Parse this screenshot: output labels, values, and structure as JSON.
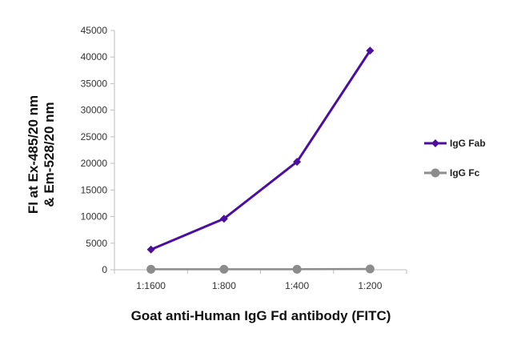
{
  "chart_data": {
    "type": "line",
    "categories": [
      "1:1600",
      "1:800",
      "1:400",
      "1:200"
    ],
    "series": [
      {
        "name": "IgG Fab",
        "values": [
          3800,
          9600,
          20300,
          41200
        ],
        "color": "#4b0fa0",
        "marker": "diamond"
      },
      {
        "name": "IgG Fc",
        "values": [
          100,
          100,
          100,
          150
        ],
        "color": "#8c8c8c",
        "marker": "circle"
      }
    ],
    "xlabel": "Goat anti-Human IgG Fd antibody (FITC)",
    "ylabel": [
      "FI at Ex-485/20 nm",
      "& Em-528/20 nm"
    ],
    "ylim": [
      0,
      45000
    ],
    "yticks": [
      0,
      5000,
      10000,
      15000,
      20000,
      25000,
      30000,
      35000,
      40000,
      45000
    ],
    "grid": false,
    "legend_position": "right"
  }
}
